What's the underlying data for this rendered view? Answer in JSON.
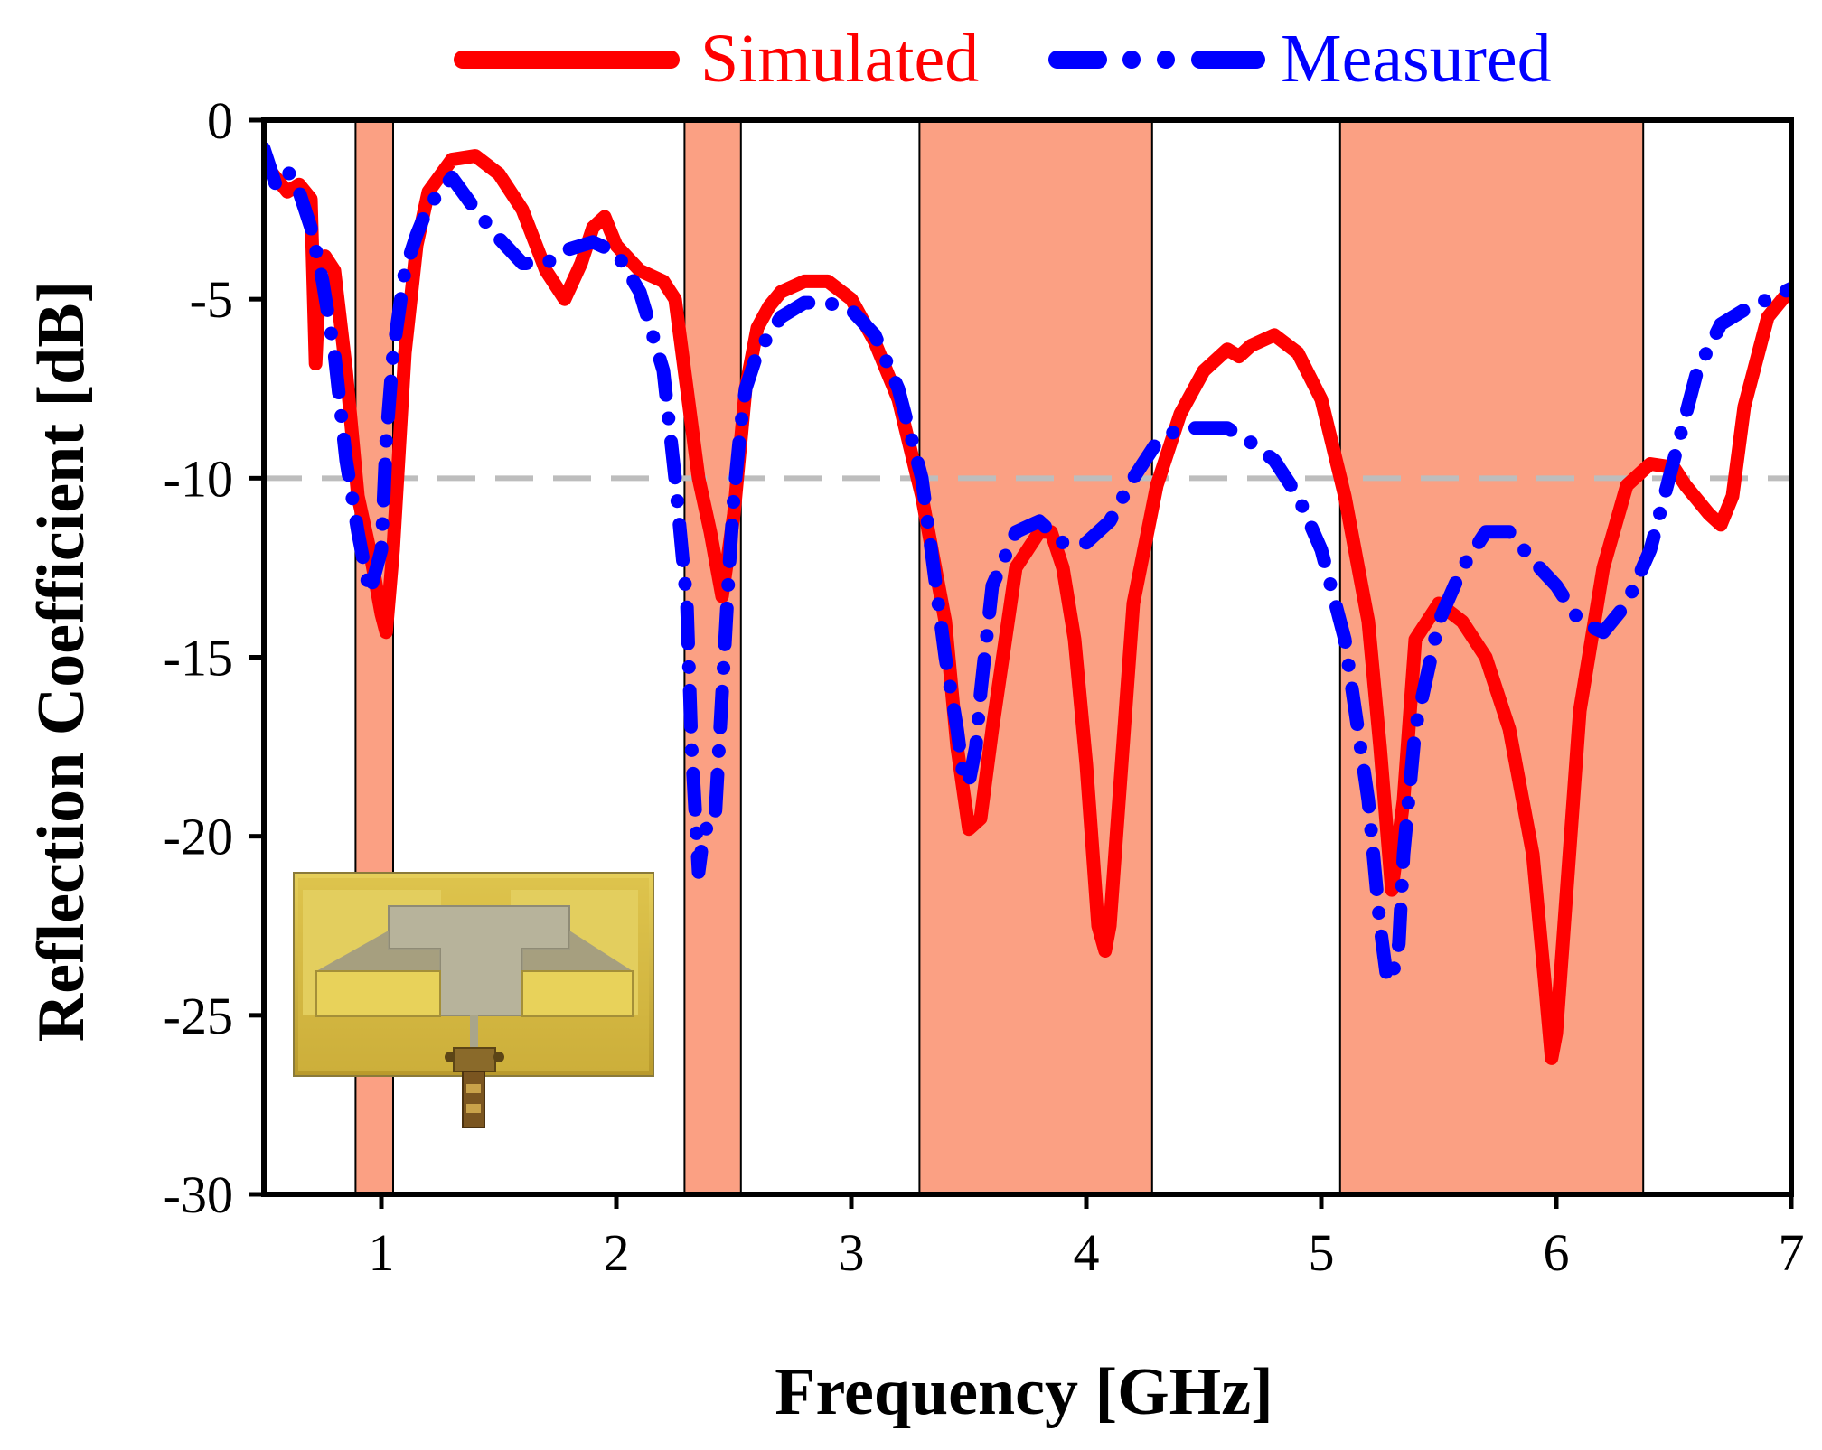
{
  "colors": {
    "simulated": "#ff0000",
    "measured": "#0000ff",
    "band_fill": "#fba083",
    "reference": "#bdbdbd",
    "axis": "#000000",
    "inset_board": "#d8b84a",
    "inset_patch": "#b7b39b"
  },
  "chart_data": {
    "type": "line",
    "title": "",
    "xlabel": "Frequency [GHz]",
    "ylabel": "Reflection Coefficient [dB]",
    "xlim": [
      0.5,
      7
    ],
    "ylim": [
      -30,
      0
    ],
    "xticks": [
      1,
      2,
      3,
      4,
      5,
      6,
      7
    ],
    "xtick_labels": [
      "1",
      "2",
      "3",
      "4",
      "5",
      "6",
      "7"
    ],
    "yticks": [
      0,
      -5,
      -10,
      -15,
      -20,
      -25,
      -30
    ],
    "ytick_labels": [
      "0",
      "-5",
      "-10",
      "-15",
      "-20",
      "-25",
      "-30"
    ],
    "reference_line": {
      "y": -10,
      "style": "dashed"
    },
    "bands": [
      {
        "x0": 0.89,
        "x1": 1.05
      },
      {
        "x0": 2.29,
        "x1": 2.53
      },
      {
        "x0": 3.29,
        "x1": 4.28
      },
      {
        "x0": 5.08,
        "x1": 6.37
      }
    ],
    "legend_position": "top",
    "series": [
      {
        "name": "Simulated",
        "style": "solid",
        "x": [
          0.5,
          0.6,
          0.65,
          0.7,
          0.72,
          0.74,
          0.76,
          0.8,
          0.85,
          0.9,
          0.95,
          1.0,
          1.02,
          1.05,
          1.1,
          1.15,
          1.2,
          1.3,
          1.4,
          1.5,
          1.6,
          1.7,
          1.78,
          1.85,
          1.9,
          1.95,
          2.0,
          2.1,
          2.2,
          2.25,
          2.3,
          2.35,
          2.4,
          2.45,
          2.5,
          2.55,
          2.6,
          2.65,
          2.7,
          2.8,
          2.9,
          3.0,
          3.1,
          3.2,
          3.3,
          3.4,
          3.45,
          3.5,
          3.55,
          3.6,
          3.7,
          3.8,
          3.85,
          3.9,
          3.95,
          4.0,
          4.05,
          4.08,
          4.1,
          4.15,
          4.2,
          4.3,
          4.4,
          4.5,
          4.6,
          4.65,
          4.7,
          4.8,
          4.9,
          5.0,
          5.1,
          5.2,
          5.25,
          5.3,
          5.35,
          5.4,
          5.5,
          5.6,
          5.7,
          5.8,
          5.9,
          5.95,
          5.98,
          6.0,
          6.05,
          6.1,
          6.2,
          6.3,
          6.4,
          6.5,
          6.55,
          6.6,
          6.65,
          6.7,
          6.75,
          6.8,
          6.9,
          7.0
        ],
        "y": [
          -1.2,
          -2.0,
          -1.8,
          -2.2,
          -6.8,
          -4.0,
          -3.8,
          -4.2,
          -7.0,
          -10.5,
          -12.0,
          -13.8,
          -14.3,
          -12.0,
          -6.5,
          -3.5,
          -2.0,
          -1.1,
          -1.0,
          -1.5,
          -2.5,
          -4.2,
          -5.0,
          -4.0,
          -3.0,
          -2.7,
          -3.5,
          -4.2,
          -4.5,
          -5.0,
          -7.5,
          -10.0,
          -11.5,
          -13.3,
          -11.0,
          -7.5,
          -5.8,
          -5.2,
          -4.8,
          -4.5,
          -4.5,
          -5.0,
          -6.2,
          -7.8,
          -10.5,
          -14.0,
          -17.5,
          -19.8,
          -19.5,
          -17.0,
          -12.5,
          -11.5,
          -11.5,
          -12.5,
          -14.5,
          -18.0,
          -22.5,
          -23.2,
          -22.5,
          -18.0,
          -13.5,
          -10.2,
          -8.2,
          -7.0,
          -6.4,
          -6.6,
          -6.3,
          -6.0,
          -6.5,
          -7.8,
          -10.5,
          -14.0,
          -17.5,
          -21.5,
          -19.0,
          -14.5,
          -13.5,
          -14.0,
          -15.0,
          -17.0,
          -20.5,
          -24.0,
          -26.2,
          -25.5,
          -21.0,
          -16.5,
          -12.5,
          -10.2,
          -9.6,
          -9.7,
          -10.2,
          -10.6,
          -11.0,
          -11.3,
          -10.5,
          -8.0,
          -5.5,
          -4.7
        ]
      },
      {
        "name": "Measured",
        "style": "dash-dot",
        "x": [
          0.5,
          0.55,
          0.6,
          0.65,
          0.7,
          0.75,
          0.8,
          0.85,
          0.9,
          0.95,
          1.0,
          1.02,
          1.05,
          1.1,
          1.15,
          1.2,
          1.25,
          1.3,
          1.4,
          1.5,
          1.6,
          1.7,
          1.8,
          1.9,
          2.0,
          2.1,
          2.2,
          2.25,
          2.3,
          2.32,
          2.35,
          2.37,
          2.4,
          2.42,
          2.45,
          2.48,
          2.5,
          2.53,
          2.55,
          2.6,
          2.65,
          2.7,
          2.8,
          2.9,
          3.0,
          3.1,
          3.2,
          3.3,
          3.35,
          3.4,
          3.45,
          3.48,
          3.5,
          3.53,
          3.55,
          3.6,
          3.7,
          3.8,
          3.9,
          4.0,
          4.1,
          4.2,
          4.25,
          4.3,
          4.4,
          4.5,
          4.6,
          4.7,
          4.8,
          4.9,
          5.0,
          5.1,
          5.2,
          5.25,
          5.28,
          5.3,
          5.33,
          5.35,
          5.4,
          5.5,
          5.6,
          5.7,
          5.8,
          5.9,
          6.0,
          6.1,
          6.2,
          6.3,
          6.4,
          6.5,
          6.6,
          6.7,
          6.8,
          6.9,
          7.0
        ],
        "y": [
          -0.8,
          -1.8,
          -1.4,
          -2.0,
          -3.0,
          -4.5,
          -6.5,
          -9.5,
          -11.5,
          -13.2,
          -12.0,
          -9.0,
          -6.5,
          -4.2,
          -3.2,
          -2.4,
          -2.0,
          -1.6,
          -2.5,
          -3.3,
          -4.0,
          -4.0,
          -3.6,
          -3.4,
          -3.7,
          -4.8,
          -7.0,
          -10.0,
          -13.5,
          -17.5,
          -21.0,
          -20.0,
          -19.5,
          -19.5,
          -16.0,
          -12.5,
          -10.5,
          -8.5,
          -7.5,
          -6.5,
          -6.0,
          -5.5,
          -5.1,
          -5.1,
          -5.3,
          -6.0,
          -7.5,
          -10.0,
          -12.5,
          -15.0,
          -17.0,
          -18.5,
          -18.5,
          -17.5,
          -16.0,
          -13.0,
          -11.5,
          -11.2,
          -11.8,
          -11.8,
          -11.2,
          -10.0,
          -9.5,
          -9.0,
          -8.6,
          -8.6,
          -8.6,
          -9.0,
          -9.5,
          -10.5,
          -12.0,
          -14.5,
          -19.0,
          -22.5,
          -24.0,
          -24.0,
          -23.0,
          -20.5,
          -17.0,
          -14.0,
          -12.5,
          -11.5,
          -11.5,
          -12.3,
          -13.0,
          -14.0,
          -14.3,
          -13.5,
          -12.0,
          -9.5,
          -7.0,
          -5.7,
          -5.3,
          -5.0,
          -4.7
        ]
      }
    ]
  },
  "legend": {
    "simulated_label": "Simulated",
    "measured_label": "Measured"
  }
}
